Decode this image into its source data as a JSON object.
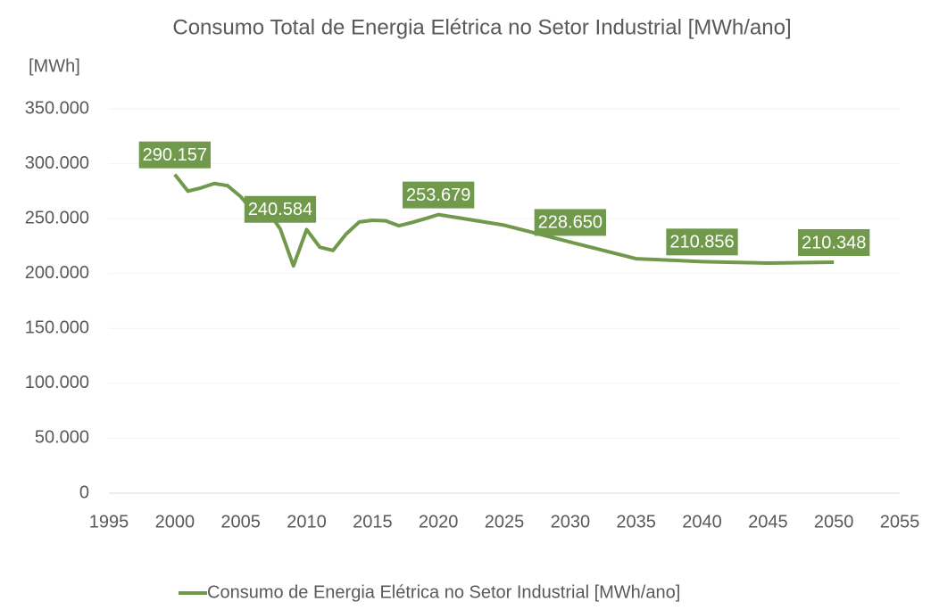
{
  "chart_data": {
    "type": "line",
    "title": "Consumo Total de Energia Elétrica no Setor Industrial [MWh/ano]",
    "y_label": "[MWh]",
    "x": [
      2000,
      2001,
      2002,
      2003,
      2004,
      2005,
      2006,
      2007,
      2008,
      2009,
      2010,
      2011,
      2012,
      2013,
      2014,
      2015,
      2016,
      2017,
      2018,
      2019,
      2020,
      2025,
      2030,
      2035,
      2040,
      2045,
      2050
    ],
    "series": [
      {
        "name": "Consumo de Energia Elétrica no Setor Industrial [MWh/ano]",
        "color": "#70994b",
        "values": [
          290157,
          275000,
          278000,
          282000,
          280000,
          270000,
          256000,
          258000,
          240584,
          207000,
          240000,
          224000,
          221000,
          236000,
          247000,
          248500,
          248000,
          243500,
          246500,
          250000,
          253679,
          244000,
          228650,
          213500,
          210856,
          209500,
          210348
        ],
        "value_labels": [
          "290.157",
          null,
          null,
          null,
          null,
          null,
          null,
          null,
          "240.584",
          null,
          null,
          null,
          null,
          null,
          null,
          null,
          null,
          null,
          null,
          null,
          "253.679",
          null,
          "228.650",
          null,
          "210.856",
          null,
          "210.348"
        ]
      }
    ],
    "xlim": [
      1995,
      2055
    ],
    "xticks": [
      1995,
      2000,
      2005,
      2010,
      2015,
      2020,
      2025,
      2030,
      2035,
      2040,
      2045,
      2050,
      2055
    ],
    "ylim": [
      0,
      350000
    ],
    "yticks": [
      {
        "value": 0,
        "label": "0"
      },
      {
        "value": 50000,
        "label": "50.000"
      },
      {
        "value": 100000,
        "label": "100.000"
      },
      {
        "value": 150000,
        "label": "150.000"
      },
      {
        "value": 200000,
        "label": "200.000"
      },
      {
        "value": 250000,
        "label": "250.000"
      },
      {
        "value": 300000,
        "label": "300.000"
      },
      {
        "value": 350000,
        "label": "350.000"
      }
    ],
    "grid": true,
    "legend": "bottom"
  }
}
